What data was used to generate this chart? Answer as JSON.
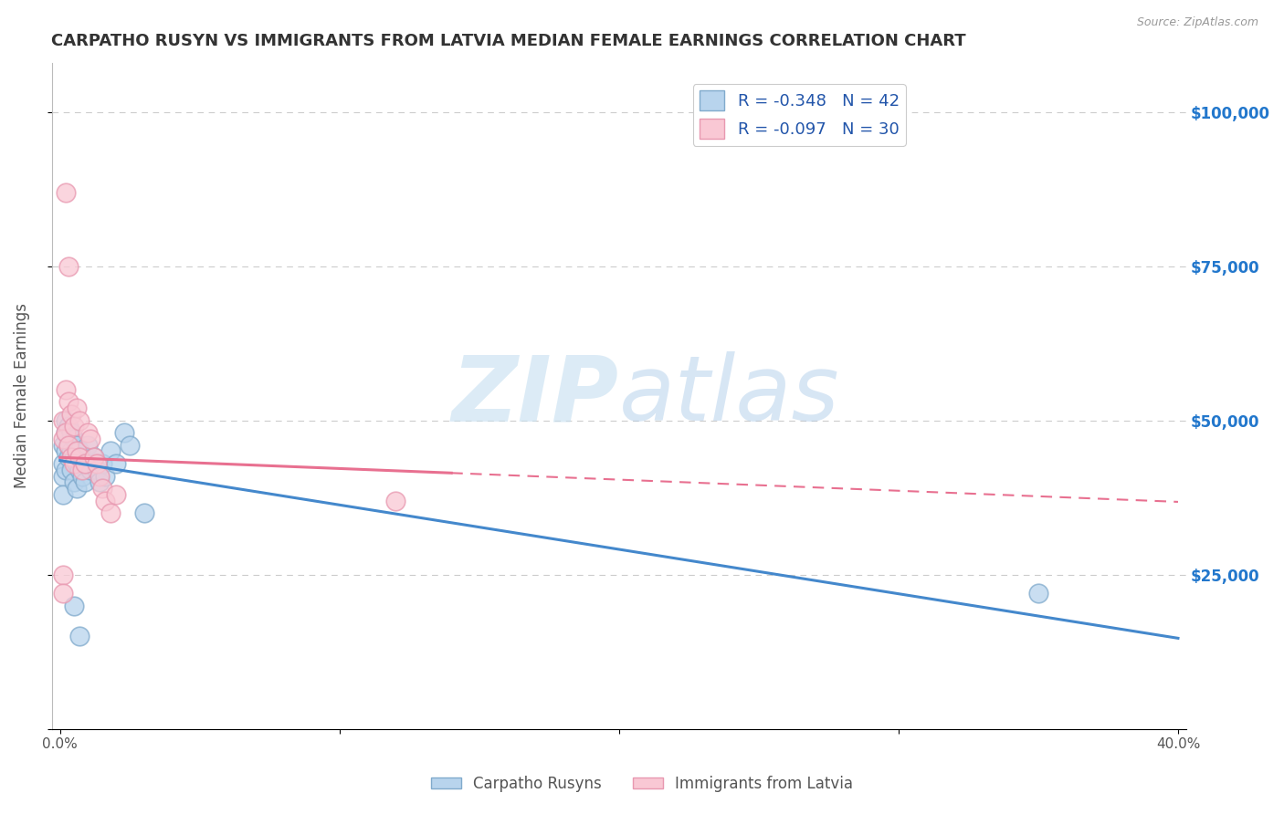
{
  "title": "CARPATHO RUSYN VS IMMIGRANTS FROM LATVIA MEDIAN FEMALE EARNINGS CORRELATION CHART",
  "source": "Source: ZipAtlas.com",
  "ylabel": "Median Female Earnings",
  "xlabel": "",
  "xlim": [
    -0.003,
    0.403
  ],
  "ylim": [
    0,
    108000
  ],
  "yticks": [
    0,
    25000,
    50000,
    75000,
    100000
  ],
  "ytick_labels_right": [
    "",
    "$25,000",
    "$50,000",
    "$75,000",
    "$100,000"
  ],
  "xticks": [
    0.0,
    0.1,
    0.2,
    0.3,
    0.4
  ],
  "xtick_labels": [
    "0.0%",
    "",
    "",
    "",
    "40.0%"
  ],
  "background_color": "#ffffff",
  "grid_color": "#cccccc",
  "watermark_zip": "ZIP",
  "watermark_atlas": "atlas",
  "legend_entries": [
    {
      "label": "R = -0.348   N = 42",
      "color": "#b8d4ed"
    },
    {
      "label": "R = -0.097   N = 30",
      "color": "#f9c8d4"
    }
  ],
  "legend_labels_bottom": [
    "Carpatho Rusyns",
    "Immigrants from Latvia"
  ],
  "blue_x": [
    0.001,
    0.001,
    0.001,
    0.001,
    0.002,
    0.002,
    0.002,
    0.002,
    0.003,
    0.003,
    0.003,
    0.004,
    0.004,
    0.004,
    0.005,
    0.005,
    0.005,
    0.006,
    0.006,
    0.006,
    0.007,
    0.007,
    0.008,
    0.008,
    0.009,
    0.009,
    0.01,
    0.01,
    0.011,
    0.012,
    0.013,
    0.014,
    0.015,
    0.016,
    0.018,
    0.02,
    0.023,
    0.025,
    0.03,
    0.007,
    0.35,
    0.005
  ],
  "blue_y": [
    46000,
    43000,
    41000,
    38000,
    50000,
    48000,
    45000,
    42000,
    49000,
    46000,
    44000,
    48000,
    45000,
    42000,
    47000,
    44000,
    40000,
    46000,
    43000,
    39000,
    45000,
    42000,
    44000,
    41000,
    43000,
    40000,
    46000,
    43000,
    42000,
    44000,
    42000,
    40000,
    43000,
    41000,
    45000,
    43000,
    48000,
    46000,
    35000,
    15000,
    22000,
    20000
  ],
  "pink_x": [
    0.001,
    0.001,
    0.002,
    0.002,
    0.003,
    0.003,
    0.004,
    0.004,
    0.005,
    0.005,
    0.006,
    0.006,
    0.007,
    0.007,
    0.008,
    0.009,
    0.01,
    0.011,
    0.012,
    0.013,
    0.014,
    0.015,
    0.016,
    0.018,
    0.02,
    0.002,
    0.003,
    0.12,
    0.001,
    0.001
  ],
  "pink_y": [
    50000,
    47000,
    55000,
    48000,
    53000,
    46000,
    51000,
    44000,
    49000,
    43000,
    52000,
    45000,
    50000,
    44000,
    42000,
    43000,
    48000,
    47000,
    44000,
    43000,
    41000,
    39000,
    37000,
    35000,
    38000,
    87000,
    75000,
    37000,
    25000,
    22000
  ],
  "title_color": "#333333",
  "title_fontsize": 13,
  "axis_label_color": "#555555",
  "tick_color_y": "#2277cc",
  "tick_color_x": "#555555",
  "blue_line_color": "#4488cc",
  "pink_line_color": "#e87090",
  "blue_line_intercept": 43500,
  "blue_line_slope": -72000,
  "pink_line_x_start": 0.0,
  "pink_line_x_solid_end": 0.14,
  "pink_line_x_dash_end": 0.4,
  "pink_line_intercept": 44000,
  "pink_line_slope": -18000
}
